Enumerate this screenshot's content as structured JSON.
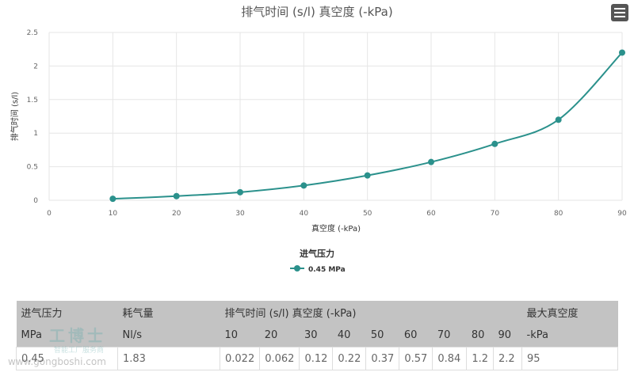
{
  "chart_data": {
    "type": "line",
    "title": "排气时间 (s/l) 真空度 (-kPa)",
    "xlabel": "真空度 (-kPa)",
    "ylabel": "排气时间 (s/l)",
    "xlim": [
      0,
      90
    ],
    "ylim": [
      0,
      2.5
    ],
    "x_ticks": [
      "0",
      "10",
      "20",
      "30",
      "40",
      "50",
      "60",
      "70",
      "80",
      "90"
    ],
    "y_ticks": [
      "0",
      "0.5",
      "1",
      "1.5",
      "2",
      "2.5"
    ],
    "grid": true,
    "legend": {
      "title": "进气压力",
      "placement": "bottom"
    },
    "series": [
      {
        "name": "0.45 MPa",
        "color": "#2b918c",
        "x": [
          10,
          20,
          30,
          40,
          50,
          60,
          70,
          80,
          90
        ],
        "y": [
          0.022,
          0.062,
          0.12,
          0.22,
          0.37,
          0.57,
          0.84,
          1.2,
          2.2
        ]
      }
    ]
  },
  "table": {
    "header1": [
      "进气压力",
      "耗气量",
      "排气时间 (s/l) 真空度 (-kPa)",
      "最大真空度"
    ],
    "header2": [
      "MPa",
      "Nl/s",
      "10",
      "20",
      "30",
      "40",
      "50",
      "60",
      "70",
      "80",
      "90",
      "-kPa"
    ],
    "row": [
      "0.45",
      "1.83",
      "0.022",
      "0.062",
      "0.12",
      "0.22",
      "0.37",
      "0.57",
      "0.84",
      "1.2",
      "2.2",
      "95"
    ]
  },
  "watermark": {
    "name": "工博士",
    "slogan": "智能工厂服务商",
    "url": "www.gongboshi.com"
  },
  "menu_icon": "hamburger-menu-icon"
}
